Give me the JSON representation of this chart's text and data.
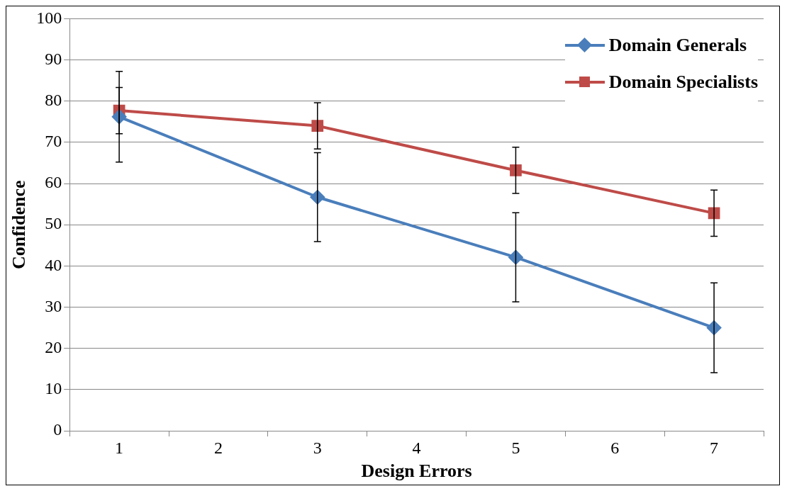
{
  "chart_data": {
    "type": "line",
    "xlabel": "Design Errors",
    "ylabel": "Confidence",
    "categories": [
      "1",
      "2",
      "3",
      "4",
      "5",
      "6",
      "7"
    ],
    "ylim": [
      0,
      100
    ],
    "yticks": [
      0,
      10,
      20,
      30,
      40,
      50,
      60,
      70,
      80,
      90,
      100
    ],
    "grid": "y",
    "legend": "top right",
    "series": [
      {
        "name": "Domain Generals",
        "color": "#4a7ebb",
        "marker": "diamond",
        "values": [
          76.2,
          null,
          56.7,
          null,
          42.1,
          null,
          25
        ],
        "errors": [
          11,
          null,
          10.8,
          null,
          10.8,
          null,
          10.9
        ]
      },
      {
        "name": "Domain Specialists",
        "color": "#be4b48",
        "marker": "square",
        "values": [
          77.7,
          null,
          74,
          null,
          63.2,
          null,
          52.8
        ],
        "errors": [
          5.6,
          null,
          5.6,
          null,
          5.6,
          null,
          5.6
        ]
      }
    ]
  }
}
